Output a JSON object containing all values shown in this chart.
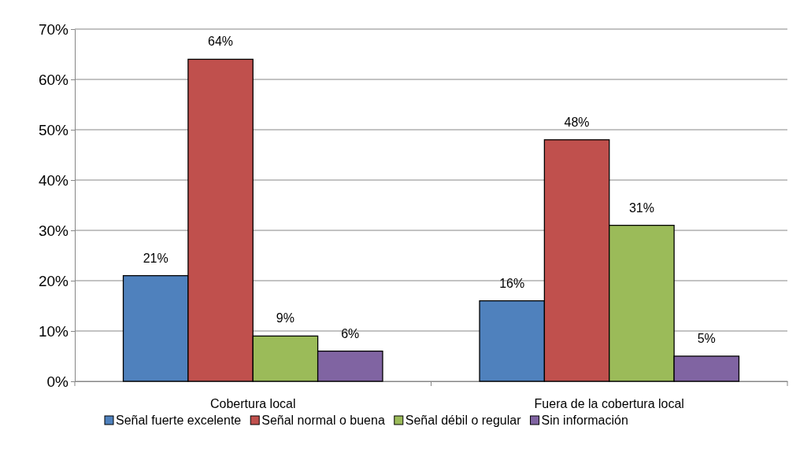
{
  "chart_data": {
    "type": "bar",
    "categories": [
      "Cobertura local",
      "Fuera de la cobertura local"
    ],
    "series": [
      {
        "name": "Señal fuerte excelente",
        "color": "#4f81bd",
        "values": [
          21,
          16
        ],
        "value_labels": [
          "21%",
          "16%"
        ]
      },
      {
        "name": "Señal normal o buena",
        "color": "#c0504d",
        "values": [
          64,
          48
        ],
        "value_labels": [
          "64%",
          "48%"
        ]
      },
      {
        "name": "Señal débil o regular",
        "color": "#9bbb59",
        "values": [
          9,
          31
        ],
        "value_labels": [
          "9%",
          "31%"
        ]
      },
      {
        "name": "Sin información",
        "color": "#8064a2",
        "values": [
          6,
          5
        ],
        "value_labels": [
          "6%",
          "5%"
        ]
      }
    ],
    "ylim": [
      0,
      70
    ],
    "yticks": [
      {
        "value": 0,
        "label": "0%"
      },
      {
        "value": 10,
        "label": "10%"
      },
      {
        "value": 20,
        "label": "20%"
      },
      {
        "value": 30,
        "label": "30%"
      },
      {
        "value": 40,
        "label": "40%"
      },
      {
        "value": 50,
        "label": "50%"
      },
      {
        "value": 60,
        "label": "60%"
      },
      {
        "value": 70,
        "label": "70%"
      }
    ],
    "grid": "y",
    "legend": "bottom"
  }
}
